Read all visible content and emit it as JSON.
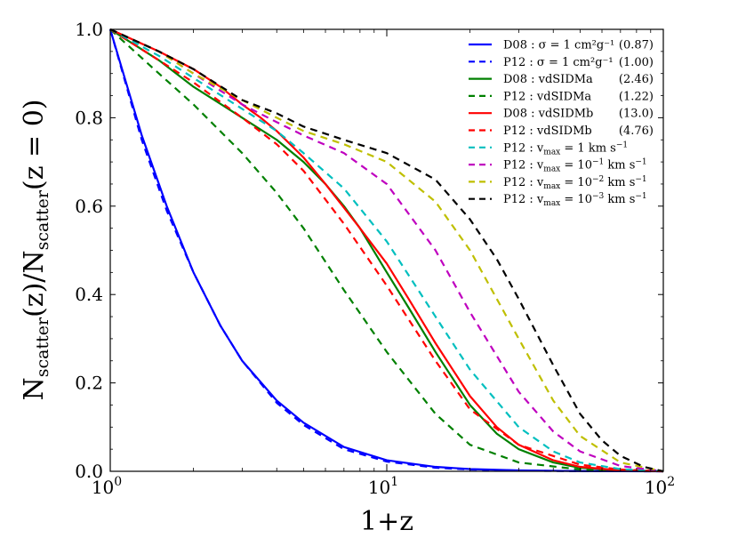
{
  "chart_data": {
    "type": "line",
    "xscale": "log",
    "xlim": [
      1,
      100
    ],
    "ylim": [
      0.0,
      1.0
    ],
    "xlabel": "1+z",
    "ylabel": "N_scatter(z)/N_scatter(z=0)",
    "xticks": [
      {
        "value": 1,
        "label": "10",
        "exp": "0"
      },
      {
        "value": 10,
        "label": "10",
        "exp": "1"
      },
      {
        "value": 100,
        "label": "10",
        "exp": "2"
      }
    ],
    "yticks": [
      {
        "value": 0.0,
        "label": "0.0"
      },
      {
        "value": 0.2,
        "label": "0.2"
      },
      {
        "value": 0.4,
        "label": "0.4"
      },
      {
        "value": 0.6,
        "label": "0.6"
      },
      {
        "value": 0.8,
        "label": "0.8"
      },
      {
        "value": 1.0,
        "label": "1.0"
      }
    ],
    "legend_position": "top-right",
    "series": [
      {
        "name": "D08 : σ = 1 cm²g⁻¹ (0.87)",
        "label": "D08 :  σ = 1 cm²g⁻¹",
        "value": "(0.87)",
        "color": "#0000ff",
        "style": "solid",
        "x": [
          1,
          1.3,
          1.6,
          2,
          2.5,
          3,
          4,
          5,
          7,
          10,
          15,
          20,
          30,
          50,
          100
        ],
        "y": [
          1.0,
          0.76,
          0.6,
          0.45,
          0.33,
          0.25,
          0.16,
          0.11,
          0.055,
          0.025,
          0.01,
          0.005,
          0.002,
          0.0005,
          0.0
        ]
      },
      {
        "name": "P12 : σ = 1 cm²g⁻¹ (1.00)",
        "label": "P12 :  σ = 1 cm²g⁻¹",
        "value": "(1.00)",
        "color": "#0000ff",
        "style": "dashed",
        "x": [
          1,
          1.3,
          1.6,
          2,
          2.5,
          3,
          4,
          5,
          7,
          10,
          15,
          20,
          30,
          50,
          100
        ],
        "y": [
          1.0,
          0.75,
          0.59,
          0.45,
          0.33,
          0.25,
          0.155,
          0.105,
          0.05,
          0.022,
          0.008,
          0.004,
          0.0015,
          0.0003,
          0.0
        ]
      },
      {
        "name": "D08 : vdSIDMa (2.46)",
        "label": "D08 :  vdSIDMa",
        "value": "(2.46)",
        "color": "#008000",
        "style": "solid",
        "x": [
          1,
          1.5,
          2,
          3,
          4,
          5,
          6,
          7,
          8,
          10,
          12,
          15,
          20,
          25,
          30,
          40,
          50,
          70,
          100
        ],
        "y": [
          1.0,
          0.93,
          0.87,
          0.8,
          0.75,
          0.7,
          0.65,
          0.6,
          0.55,
          0.45,
          0.37,
          0.27,
          0.15,
          0.085,
          0.05,
          0.02,
          0.008,
          0.002,
          0.0
        ]
      },
      {
        "name": "P12 : vdSIDMa (1.22)",
        "label": "P12 :  vdSIDMa",
        "value": "(1.22)",
        "color": "#008000",
        "style": "dashed",
        "x": [
          1,
          1.5,
          2,
          3,
          4,
          5,
          7,
          10,
          15,
          20,
          30,
          50,
          100
        ],
        "y": [
          1.0,
          0.9,
          0.83,
          0.72,
          0.63,
          0.55,
          0.41,
          0.27,
          0.13,
          0.06,
          0.02,
          0.004,
          0.0
        ]
      },
      {
        "name": "D08 : vdSIDMb (13.0)",
        "label": "D08 :  vdSIDMb",
        "value": "(13.0)",
        "color": "#ff0000",
        "style": "solid",
        "x": [
          1,
          1.5,
          2,
          2.5,
          3,
          3.5,
          4,
          5,
          6,
          8,
          10,
          12,
          15,
          20,
          25,
          30,
          40,
          50,
          70,
          100
        ],
        "y": [
          1.0,
          0.95,
          0.91,
          0.87,
          0.83,
          0.8,
          0.77,
          0.71,
          0.65,
          0.55,
          0.47,
          0.39,
          0.29,
          0.17,
          0.1,
          0.06,
          0.025,
          0.01,
          0.002,
          0.0
        ]
      },
      {
        "name": "P12 : vdSIDMb (4.76)",
        "label": "P12 :  vdSIDMb",
        "value": "(4.76)",
        "color": "#ff0000",
        "style": "dashed",
        "x": [
          1,
          1.5,
          2,
          3,
          4,
          5,
          7,
          10,
          15,
          20,
          30,
          50,
          70,
          100
        ],
        "y": [
          1.0,
          0.93,
          0.88,
          0.8,
          0.74,
          0.68,
          0.56,
          0.42,
          0.25,
          0.14,
          0.06,
          0.015,
          0.004,
          0.0
        ]
      },
      {
        "name": "P12 : v_max = 1 km s⁻¹",
        "label": "P12 :  v",
        "sub": "max",
        "tail": " = 1 km s",
        "sup": "−1",
        "value": "",
        "color": "#00bfbf",
        "style": "dashed",
        "x": [
          1,
          1.5,
          2,
          3,
          4,
          5,
          7,
          10,
          15,
          20,
          30,
          40,
          50,
          70,
          100
        ],
        "y": [
          1.0,
          0.94,
          0.89,
          0.82,
          0.77,
          0.72,
          0.64,
          0.52,
          0.35,
          0.23,
          0.1,
          0.045,
          0.02,
          0.005,
          0.0
        ]
      },
      {
        "name": "P12 : v_max = 10⁻¹ km s⁻¹",
        "label": "P12 :  v",
        "sub": "max",
        "tail": " = 10",
        "sup": "−1",
        "tail2": " km s",
        "sup2": "−1",
        "value": "",
        "color": "#bf00bf",
        "style": "dashed",
        "x": [
          1,
          1.5,
          2,
          3,
          4,
          5,
          7,
          10,
          15,
          20,
          30,
          40,
          50,
          70,
          100
        ],
        "y": [
          1.0,
          0.95,
          0.9,
          0.83,
          0.79,
          0.76,
          0.72,
          0.65,
          0.5,
          0.36,
          0.18,
          0.09,
          0.045,
          0.012,
          0.0
        ]
      },
      {
        "name": "P12 : v_max = 10⁻² km s⁻¹",
        "label": "P12 :  v",
        "sub": "max",
        "tail": " = 10",
        "sup": "−2",
        "tail2": " km s",
        "sup2": "−1",
        "value": "",
        "color": "#bfbf00",
        "style": "dashed",
        "x": [
          1,
          1.5,
          2,
          3,
          4,
          5,
          7,
          10,
          15,
          20,
          25,
          30,
          40,
          50,
          70,
          100
        ],
        "y": [
          1.0,
          0.95,
          0.9,
          0.84,
          0.8,
          0.77,
          0.74,
          0.7,
          0.61,
          0.5,
          0.39,
          0.3,
          0.16,
          0.08,
          0.02,
          0.0
        ]
      },
      {
        "name": "P12 : v_max = 10⁻³ km s⁻¹",
        "label": "P12 :  v",
        "sub": "max",
        "tail": " = 10",
        "sup": "−3",
        "tail2": " km s",
        "sup2": "−1",
        "value": "",
        "color": "#000000",
        "style": "dashed",
        "x": [
          1,
          1.5,
          2,
          3,
          4,
          5,
          7,
          10,
          15,
          20,
          25,
          30,
          40,
          50,
          60,
          70,
          85,
          100
        ],
        "y": [
          1.0,
          0.95,
          0.91,
          0.84,
          0.81,
          0.78,
          0.75,
          0.72,
          0.66,
          0.57,
          0.48,
          0.39,
          0.24,
          0.13,
          0.07,
          0.035,
          0.01,
          0.0
        ]
      }
    ]
  }
}
